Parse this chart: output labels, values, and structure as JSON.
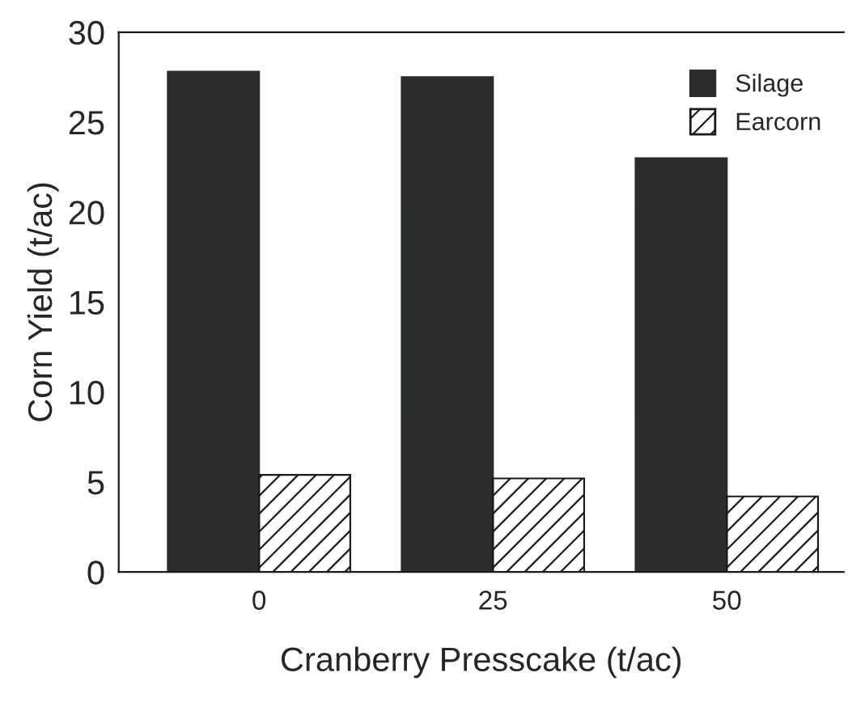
{
  "chart_data": {
    "type": "bar",
    "xlabel": "Cranberry Presscake (t/ac)",
    "ylabel": "Corn Yield (t/ac)",
    "categories": [
      "0",
      "25",
      "50"
    ],
    "series": [
      {
        "name": "Silage",
        "color": "#2a2d2a",
        "values": [
          27.8,
          27.5,
          23.0
        ]
      },
      {
        "name": "Earcorn",
        "color": "#1a1a1a",
        "values": [
          5.4,
          5.2,
          4.2
        ]
      }
    ],
    "ylim": [
      0,
      30
    ],
    "yticks": [
      0,
      5,
      10,
      15,
      20,
      25,
      30
    ],
    "grid": false,
    "legend": "top right"
  }
}
